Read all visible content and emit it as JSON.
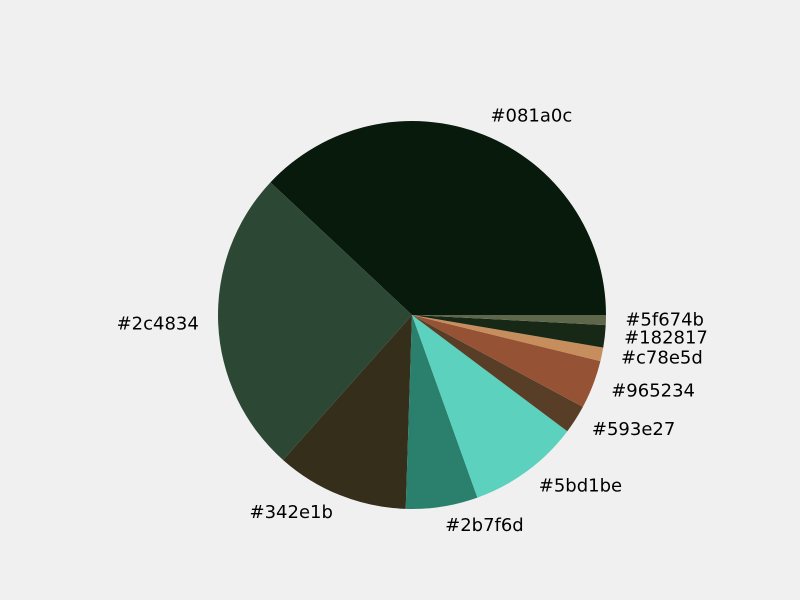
{
  "chart_data": {
    "type": "pie",
    "start_angle_deg": 0,
    "direction": "counterclockwise",
    "slices": [
      {
        "label": "#081a0c",
        "value": 36.8,
        "color": "#081a0c"
      },
      {
        "label": "#2c4834",
        "value": 24.6,
        "color": "#2c4834"
      },
      {
        "label": "#342e1b",
        "value": 10.7,
        "color": "#342e1b"
      },
      {
        "label": "#2b7f6d",
        "value": 5.8,
        "color": "#2b7f6d"
      },
      {
        "label": "#5bd1be",
        "value": 9.0,
        "color": "#5bd1be"
      },
      {
        "label": "#593e27",
        "value": 2.3,
        "color": "#593e27"
      },
      {
        "label": "#965234",
        "value": 3.9,
        "color": "#965234"
      },
      {
        "label": "#c78e5d",
        "value": 1.1,
        "color": "#c78e5d"
      },
      {
        "label": "#182817",
        "value": 1.8,
        "color": "#182817"
      },
      {
        "label": "#5f674b",
        "value": 0.8,
        "color": "#5f674b"
      }
    ]
  }
}
